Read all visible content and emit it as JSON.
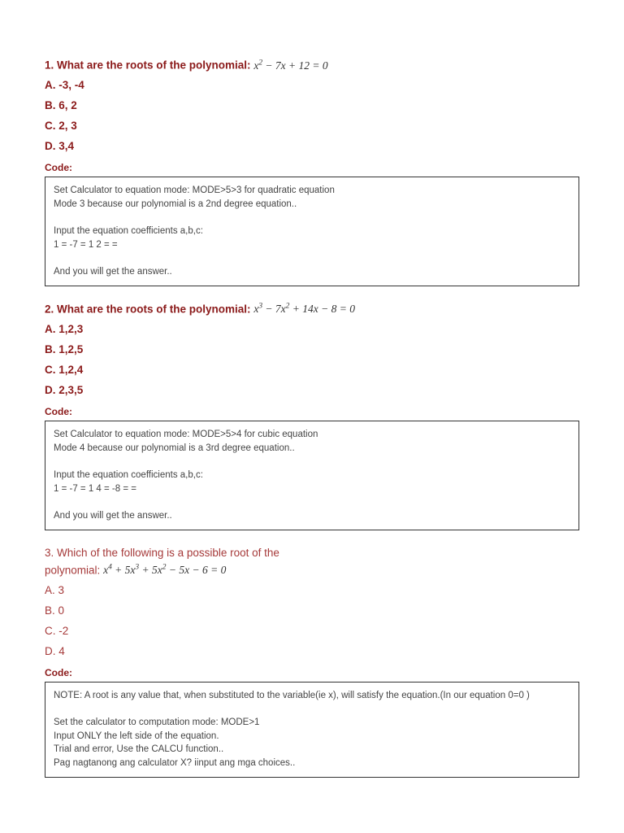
{
  "colors": {
    "heading": "#8b1a1a",
    "heading_alt": "#a63a3a",
    "text": "#333333",
    "code_text": "#444444",
    "border": "#333333",
    "background": "#ffffff"
  },
  "fonts": {
    "body": "Verdana, Geneva, sans-serif",
    "math": "Cambria Math, Georgia, serif",
    "body_size": 12.5,
    "heading_size": 13.5,
    "code_size": 11.5
  },
  "q1": {
    "num": "1.",
    "prompt": "What are the roots of the polynomial:",
    "eq_html": "<i>x</i><sup>2</sup> − 7<i>x</i> + 12 = 0",
    "optA": "A. -3, -4",
    "optB": "B. 6, 2",
    "optC": "C. 2, 3",
    "optD": "D. 3,4",
    "code_label": "Code:",
    "code": "Set Calculator to equation mode: MODE>5>3 for quadratic equation\nMode 3 because our polynomial is a 2nd degree equation..\n\nInput the equation coefficients a,b,c:\n1 = -7 = 1 2 = =\n\nAnd you will get the answer.."
  },
  "q2": {
    "num": "2.",
    "prompt": "What are the roots of the polynomial:",
    "eq_html": "<i>x</i><sup>3</sup> − 7<i>x</i><sup>2</sup> + 14<i>x</i> − 8 = 0",
    "optA": "A. 1,2,3",
    "optB": "B. 1,2,5",
    "optC": "C. 1,2,4",
    "optD": "D. 2,3,5",
    "code_label": "Code:",
    "code": "Set Calculator to equation mode: MODE>5>4 for cubic equation\nMode 4 because our polynomial is a 3rd degree equation..\n\nInput the equation coefficients a,b,c:\n1 = -7 = 1 4 = -8 = =\n\nAnd you will get the answer.."
  },
  "q3": {
    "num": "3.",
    "prompt1": "Which of the following is a possible root of the",
    "prompt2": "polynomial:",
    "eq_html": "<i>x</i><sup>4</sup> + 5<i>x</i><sup>3</sup> + 5<i>x</i><sup>2</sup> − 5<i>x</i> − 6 = 0",
    "optA": "A. 3",
    "optB": "B. 0",
    "optC": "C. -2",
    "optD": "D. 4",
    "code_label": "Code:",
    "code": "NOTE: A root is any value that, when substituted to the variable(ie x), will satisfy the equation.(In our equation 0=0 )\n\nSet the calculator to computation mode: MODE>1\nInput ONLY the left side of the equation.\nTrial and error, Use the CALCU function..\nPag nagtanong ang calculator X? iinput ang mga choices.."
  }
}
